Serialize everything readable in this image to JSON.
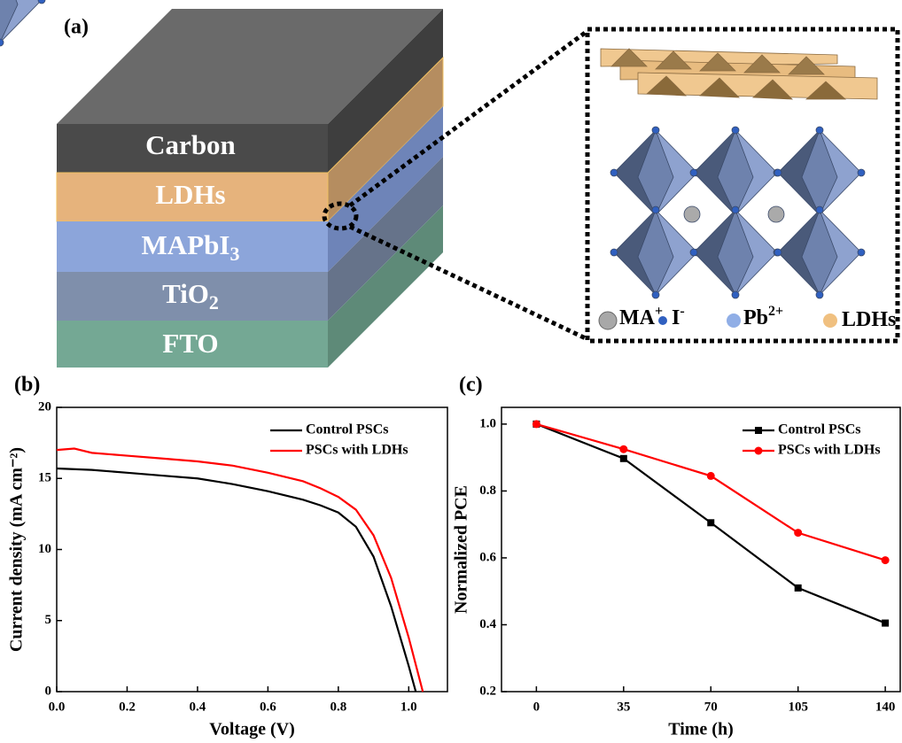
{
  "diagram": {
    "label": "(a)",
    "layers": [
      {
        "text": "Carbon"
      },
      {
        "text": "LDHs"
      },
      {
        "text": "MAPbI",
        "sub": "3"
      },
      {
        "text": "TiO",
        "sub": "2"
      },
      {
        "text": "FTO"
      }
    ],
    "legend": [
      {
        "text": "MA",
        "sup": "+"
      },
      {
        "text": "I",
        "sup": "-"
      },
      {
        "text": "Pb",
        "sup": "2+"
      },
      {
        "text": "LDHs"
      }
    ]
  },
  "chart_data": [
    {
      "type": "line",
      "label": "(b)",
      "x_label": "Voltage (V)",
      "y_label": "Current density (mA cm⁻²)",
      "xlim": [
        0,
        1.11
      ],
      "ylim": [
        0,
        20
      ],
      "xticks": [
        {
          "value": 0,
          "label": "0.0"
        },
        0.2,
        0.4,
        0.6,
        0.8,
        {
          "value": 1,
          "label": "1.0"
        }
      ],
      "yticks": [
        0,
        5,
        10,
        15,
        20
      ],
      "legend": "upper right",
      "series": [
        {
          "name": "Control PSCs",
          "color": "#000000",
          "x": [
            0,
            0.1,
            0.2,
            0.3,
            0.4,
            0.5,
            0.6,
            0.7,
            0.75,
            0.8,
            0.85,
            0.9,
            0.95,
            1.0,
            1.02
          ],
          "values": [
            15.7,
            15.6,
            15.4,
            15.2,
            15.0,
            14.6,
            14.1,
            13.5,
            13.1,
            12.6,
            11.6,
            9.5,
            6.0,
            1.8,
            0
          ]
        },
        {
          "name": "PSCs with LDHs",
          "color": "#ff0000",
          "x": [
            0,
            0.05,
            0.1,
            0.2,
            0.3,
            0.4,
            0.5,
            0.6,
            0.7,
            0.75,
            0.8,
            0.85,
            0.9,
            0.95,
            1.0,
            1.04
          ],
          "values": [
            17.0,
            17.1,
            16.8,
            16.6,
            16.4,
            16.2,
            15.9,
            15.4,
            14.8,
            14.3,
            13.7,
            12.8,
            11.0,
            8.0,
            3.8,
            0
          ]
        }
      ]
    },
    {
      "type": "line",
      "label": "(c)",
      "x_label": "Time (h)",
      "y_label": "Normalized PCE",
      "x": [
        0,
        35,
        70,
        105,
        140
      ],
      "xlim": [
        -14,
        146
      ],
      "ylim": [
        0.2,
        1.05
      ],
      "xticks": [
        0,
        35,
        70,
        105,
        140
      ],
      "yticks": [
        0.2,
        0.4,
        0.6,
        0.8,
        {
          "value": 1,
          "label": "1.0"
        }
      ],
      "legend": "upper right",
      "series": [
        {
          "name": "Control PSCs",
          "color": "#000000",
          "marker": "square",
          "values": [
            1.0,
            0.897,
            0.705,
            0.51,
            0.405
          ]
        },
        {
          "name": "PSCs with LDHs",
          "color": "#ff0000",
          "marker": "circle",
          "values": [
            1.0,
            0.925,
            0.845,
            0.675,
            0.593
          ]
        }
      ]
    }
  ]
}
